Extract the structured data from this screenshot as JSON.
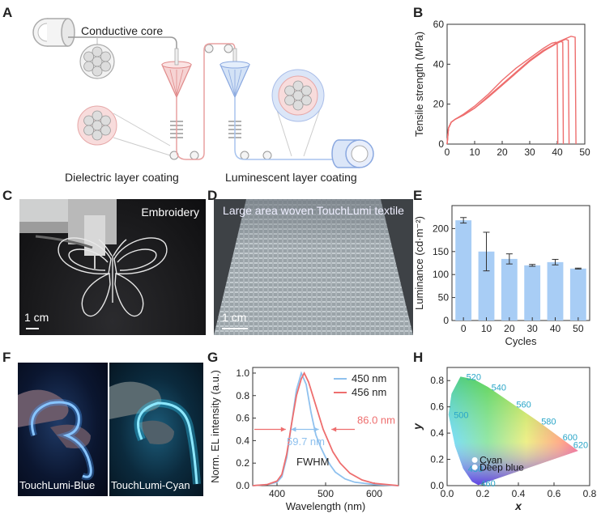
{
  "panels": {
    "A": {
      "letter": "A",
      "conductive_core": "Conductive core",
      "dielectric": "Dielectric layer coating",
      "luminescent": "Luminescent layer coating"
    },
    "B": {
      "letter": "B"
    },
    "C": {
      "letter": "C",
      "label": "Embroidery",
      "scale": "1 cm"
    },
    "D": {
      "letter": "D",
      "label": "Large area woven TouchLumi textile",
      "scale": "1 cm"
    },
    "E": {
      "letter": "E"
    },
    "F": {
      "letter": "F",
      "label_blue": "TouchLumi-Blue",
      "label_cyan": "TouchLumi-Cyan"
    },
    "G": {
      "letter": "G",
      "fwhm_label": "FWHM",
      "fwhm_blue": "59.7 nm",
      "fwhm_red": "86.0 nm"
    },
    "H": {
      "letter": "H",
      "cyan_label": "Cyan",
      "deep_blue_label": "Deep blue"
    }
  },
  "colors": {
    "red": "#ee6e6e",
    "blue": "#8fc1ee",
    "bar": "#a8cdf5",
    "teal": "#2aa6c8"
  },
  "chart_data": [
    {
      "panel": "B",
      "type": "line",
      "xlabel": "Elongation (%)",
      "ylabel": "Tensile strength (MPa)",
      "xlim": [
        0,
        50
      ],
      "ylim": [
        0,
        60
      ],
      "xticks": [
        0,
        10,
        20,
        30,
        40,
        50
      ],
      "yticks": [
        0,
        20,
        40,
        60
      ],
      "series": [
        {
          "x": [
            0,
            0.5,
            1.5,
            3,
            6,
            10,
            15,
            20,
            25,
            30,
            35,
            38,
            39.5,
            40,
            40.2
          ],
          "y": [
            0,
            8,
            11,
            12.5,
            15,
            19,
            25,
            32,
            38,
            43,
            48,
            50.5,
            51,
            50,
            0
          ]
        },
        {
          "x": [
            0,
            0.5,
            1.5,
            3,
            6,
            10,
            15,
            20,
            25,
            30,
            35,
            39,
            41,
            42,
            42.2
          ],
          "y": [
            0,
            8,
            11,
            12.5,
            14.5,
            18,
            24,
            30,
            36,
            42,
            47,
            50,
            51.5,
            51,
            0
          ]
        },
        {
          "x": [
            0,
            0.5,
            1.5,
            3,
            6,
            10,
            15,
            20,
            25,
            30,
            35,
            40,
            43,
            44,
            44.3
          ],
          "y": [
            0,
            8,
            11,
            12.5,
            14.5,
            18,
            23.5,
            29.5,
            35.5,
            41.5,
            46.5,
            50.5,
            52.5,
            52,
            0
          ]
        },
        {
          "x": [
            0,
            0.5,
            1.5,
            3,
            6,
            10,
            15,
            20,
            25,
            30,
            35,
            40,
            45,
            46.5,
            46.8
          ],
          "y": [
            0,
            8,
            11,
            12.5,
            14.5,
            18,
            23.5,
            29.5,
            35.5,
            41.5,
            46.5,
            51,
            54,
            53.5,
            0
          ]
        }
      ]
    },
    {
      "panel": "E",
      "type": "bar",
      "xlabel": "Cycles",
      "ylabel": "Luminance (cd·m⁻²)",
      "categories": [
        "0",
        "10",
        "20",
        "30",
        "40",
        "50"
      ],
      "values": [
        218,
        150,
        134,
        120,
        127,
        113
      ],
      "errors": [
        6,
        42,
        11,
        2,
        6,
        1
      ],
      "ylim": [
        0,
        250
      ],
      "yticks": [
        0,
        50,
        100,
        150,
        200
      ]
    },
    {
      "panel": "G",
      "type": "line",
      "xlabel": "Wavelength (nm)",
      "ylabel": "Norm. EL intensity (a.u.)",
      "xlim": [
        350,
        650
      ],
      "ylim": [
        0,
        1.05
      ],
      "xticks": [
        400,
        500,
        600
      ],
      "yticks": [
        0.0,
        0.2,
        0.4,
        0.6,
        0.8,
        1.0
      ],
      "series": [
        {
          "name": "450 nm",
          "color": "#8fc1ee",
          "x": [
            350,
            380,
            400,
            410,
            420,
            430,
            440,
            450,
            460,
            470,
            480,
            490,
            500,
            510,
            520,
            540,
            560,
            600,
            650
          ],
          "y": [
            0,
            0.01,
            0.03,
            0.08,
            0.25,
            0.55,
            0.85,
            1.0,
            0.9,
            0.65,
            0.45,
            0.34,
            0.25,
            0.18,
            0.12,
            0.06,
            0.03,
            0.01,
            0
          ]
        },
        {
          "name": "456 nm",
          "color": "#ee6e6e",
          "x": [
            350,
            380,
            400,
            410,
            420,
            430,
            440,
            450,
            456,
            465,
            475,
            485,
            495,
            505,
            515,
            530,
            550,
            575,
            600,
            650
          ],
          "y": [
            0,
            0.01,
            0.04,
            0.1,
            0.28,
            0.55,
            0.8,
            0.95,
            1.0,
            0.92,
            0.78,
            0.64,
            0.5,
            0.4,
            0.3,
            0.2,
            0.11,
            0.05,
            0.02,
            0
          ]
        }
      ]
    },
    {
      "panel": "H",
      "type": "scatter",
      "xlabel": "x",
      "ylabel": "y",
      "xlim": [
        0,
        0.8
      ],
      "ylim": [
        0,
        0.9
      ],
      "xticks": [
        0.0,
        0.2,
        0.4,
        0.6,
        0.8
      ],
      "yticks": [
        0.0,
        0.2,
        0.4,
        0.6,
        0.8
      ],
      "locus_labels": [
        {
          "text": "520",
          "x": 0.08,
          "y": 0.83
        },
        {
          "text": "540",
          "x": 0.23,
          "y": 0.75
        },
        {
          "text": "560",
          "x": 0.37,
          "y": 0.62
        },
        {
          "text": "580",
          "x": 0.51,
          "y": 0.49
        },
        {
          "text": "600",
          "x": 0.63,
          "y": 0.37
        },
        {
          "text": "620",
          "x": 0.69,
          "y": 0.31
        },
        {
          "text": "500",
          "x": 0.01,
          "y": 0.54
        },
        {
          "text": "480",
          "x": 0.09,
          "y": 0.13
        },
        {
          "text": "460",
          "x": 0.17,
          "y": 0.02
        }
      ],
      "points": [
        {
          "name": "Cyan",
          "x": 0.155,
          "y": 0.195
        },
        {
          "name": "Deep blue",
          "x": 0.155,
          "y": 0.14
        }
      ]
    }
  ]
}
